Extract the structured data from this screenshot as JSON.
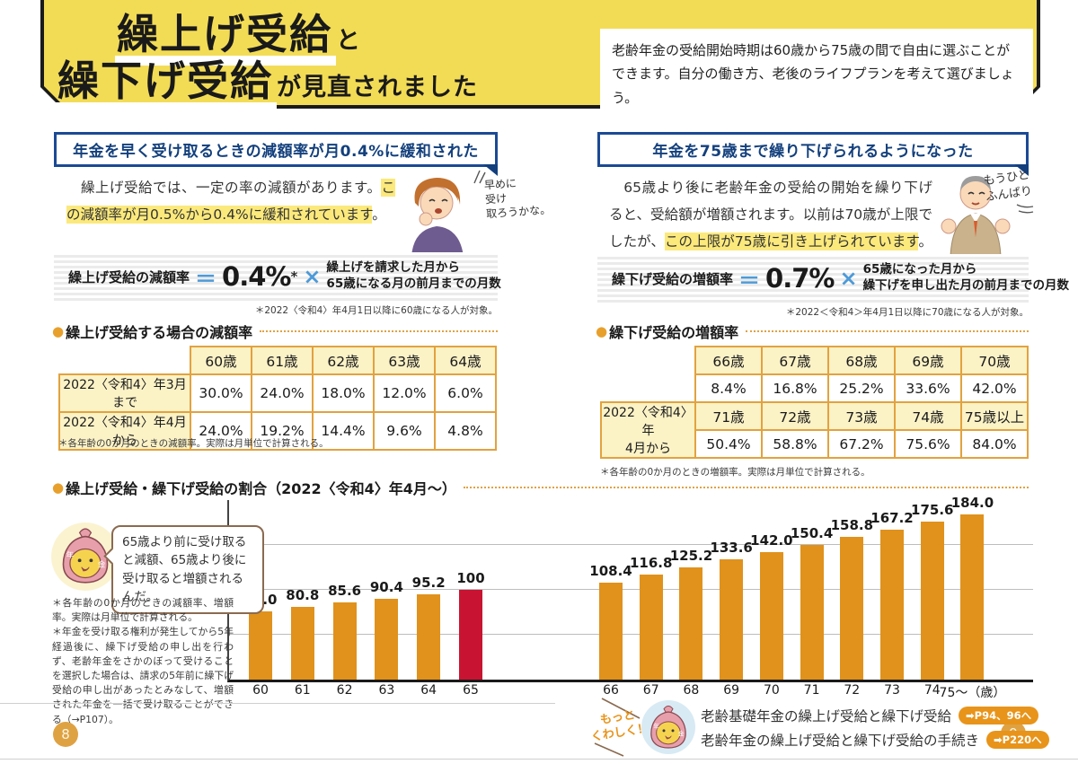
{
  "page": {
    "title_line1_strong": "繰上げ受給",
    "title_line1_rest": "と",
    "title_line2_strong": "繰下げ受給",
    "title_line2_rest": "が見直されました",
    "intro": "老齢年金の受給開始時期は60歳から75歳の間で自由に選ぶことができます。自分の働き方、老後のライフプランを考えて選びましょう。",
    "page_left": "8",
    "page_right": "9"
  },
  "left": {
    "header": "年金を早く受け取るときの減額率が月0.4%に緩和された",
    "para_pre": "　繰上げ受給では、一定の率の減額があります。",
    "para_hl": "この減額率が月0.5%から0.4%に緩和されています",
    "para_post": "。",
    "chara_note": "早めに\n受け\n取ろうかな。",
    "formula": {
      "label": "繰上げ受給の減額率",
      "eq": "＝",
      "rate": "0.4%",
      "star": "*",
      "times": "×",
      "desc1": "繰上げを請求した月から",
      "desc2": "65歳になる月の前月までの月数"
    },
    "formula_note": "＊2022〈令和4〉年4月1日以降に60歳になる人が対象。",
    "table_title": "繰上げ受給する場合の減額率",
    "table": {
      "cols": [
        "60歳",
        "61歳",
        "62歳",
        "63歳",
        "64歳"
      ],
      "rows": [
        {
          "label": "2022〈令和4〉年3月まで",
          "values": [
            "30.0%",
            "24.0%",
            "18.0%",
            "12.0%",
            "6.0%"
          ]
        },
        {
          "label": "2022〈令和4〉年4月から",
          "values": [
            "24.0%",
            "19.2%",
            "14.4%",
            "9.6%",
            "4.8%"
          ]
        }
      ]
    },
    "table_note": "＊各年齢の0か月のときの減額率。実際は月単位で計算される。"
  },
  "right": {
    "header": "年金を75歳まで繰り下げられるようになった",
    "para_pre": "　65歳より後に老齢年金の受給の開始を繰り下げると、受給額が増額されます。以前は70歳が上限でしたが、",
    "para_hl": "この上限が75歳に引き上げられています",
    "para_post": "。*",
    "chara_note": "もうひと\nふんばり",
    "formula": {
      "label": "繰下げ受給の増額率",
      "eq": "＝",
      "rate": "0.7%",
      "star": "",
      "times": "×",
      "desc1": "65歳になった月から",
      "desc2": "繰下げを申し出た月の前月までの月数"
    },
    "formula_note": "＊2022＜令和4＞年4月1日以降に70歳になる人が対象。",
    "table_title": "繰下げ受給の増額率",
    "table": {
      "cols1": [
        "66歳",
        "67歳",
        "68歳",
        "69歳",
        "70歳"
      ],
      "vals1": [
        "8.4%",
        "16.8%",
        "25.2%",
        "33.6%",
        "42.0%"
      ],
      "row_label": "2022〈令和4〉年\n4月から",
      "cols2": [
        "71歳",
        "72歳",
        "73歳",
        "74歳",
        "75歳以上"
      ],
      "vals2": [
        "50.4%",
        "58.8%",
        "67.2%",
        "75.6%",
        "84.0%"
      ]
    },
    "table_note": "＊各年齢の0か月のときの増額率。実際は月単位で計算される。"
  },
  "chart_section": {
    "title": "繰上げ受給・繰下げ受給の割合（2022〈令和4〉年4月〜）",
    "mascot_bubble": "65歳より前に受け取ると減額、65歳より後に受け取ると増額されるんだ。",
    "note1": "＊各年齢の0か月のときの減額率、増額率。実際は月単位で計算される。",
    "note2": "＊年金を受け取る権利が発生してから5年経過後に、繰下げ受給の申し出を行わず、老齢年金をさかのぼって受けることを選択した場合は、請求の5年前に繰下げ受給の申し出があったとみなして、増額された年金を一括で受け取ることができる（→P107）。"
  },
  "chart_data": {
    "type": "bar",
    "categories": [
      "60",
      "61",
      "62",
      "63",
      "64",
      "65",
      "66",
      "67",
      "68",
      "69",
      "70",
      "71",
      "72",
      "73",
      "74",
      "75〜（歳）"
    ],
    "values": [
      76.0,
      80.8,
      85.6,
      90.4,
      95.2,
      100,
      108.4,
      116.8,
      125.2,
      133.6,
      142.0,
      150.4,
      158.8,
      167.2,
      175.6,
      184.0
    ],
    "labels": [
      "76.0",
      "80.8",
      "85.6",
      "90.4",
      "95.2",
      "100",
      "108.4",
      "116.8",
      "125.2",
      "133.6",
      "142.0",
      "150.4",
      "158.8",
      "167.2",
      "175.6",
      "184.0"
    ],
    "title": "繰上げ受給・繰下げ受給の割合（2022〈令和4〉年4月〜）",
    "xlabel": "歳",
    "ylabel": "",
    "ylim": [
      0,
      200
    ],
    "gridlines": [
      50,
      100,
      150
    ],
    "grid": "on",
    "legend": "none",
    "bar_color": "#e0921c",
    "highlight_color": "#c81432",
    "highlight_index": 5
  },
  "footer": {
    "more_label": "もっと\nくわしく！",
    "links": [
      {
        "text": "老齢基礎年金の繰上げ受給と繰下げ受給",
        "badge": "➡P94、96へ"
      },
      {
        "text": "老齢年金の繰上げ受給と繰下げ受給の手続き",
        "badge": "➡P220へ"
      }
    ]
  }
}
